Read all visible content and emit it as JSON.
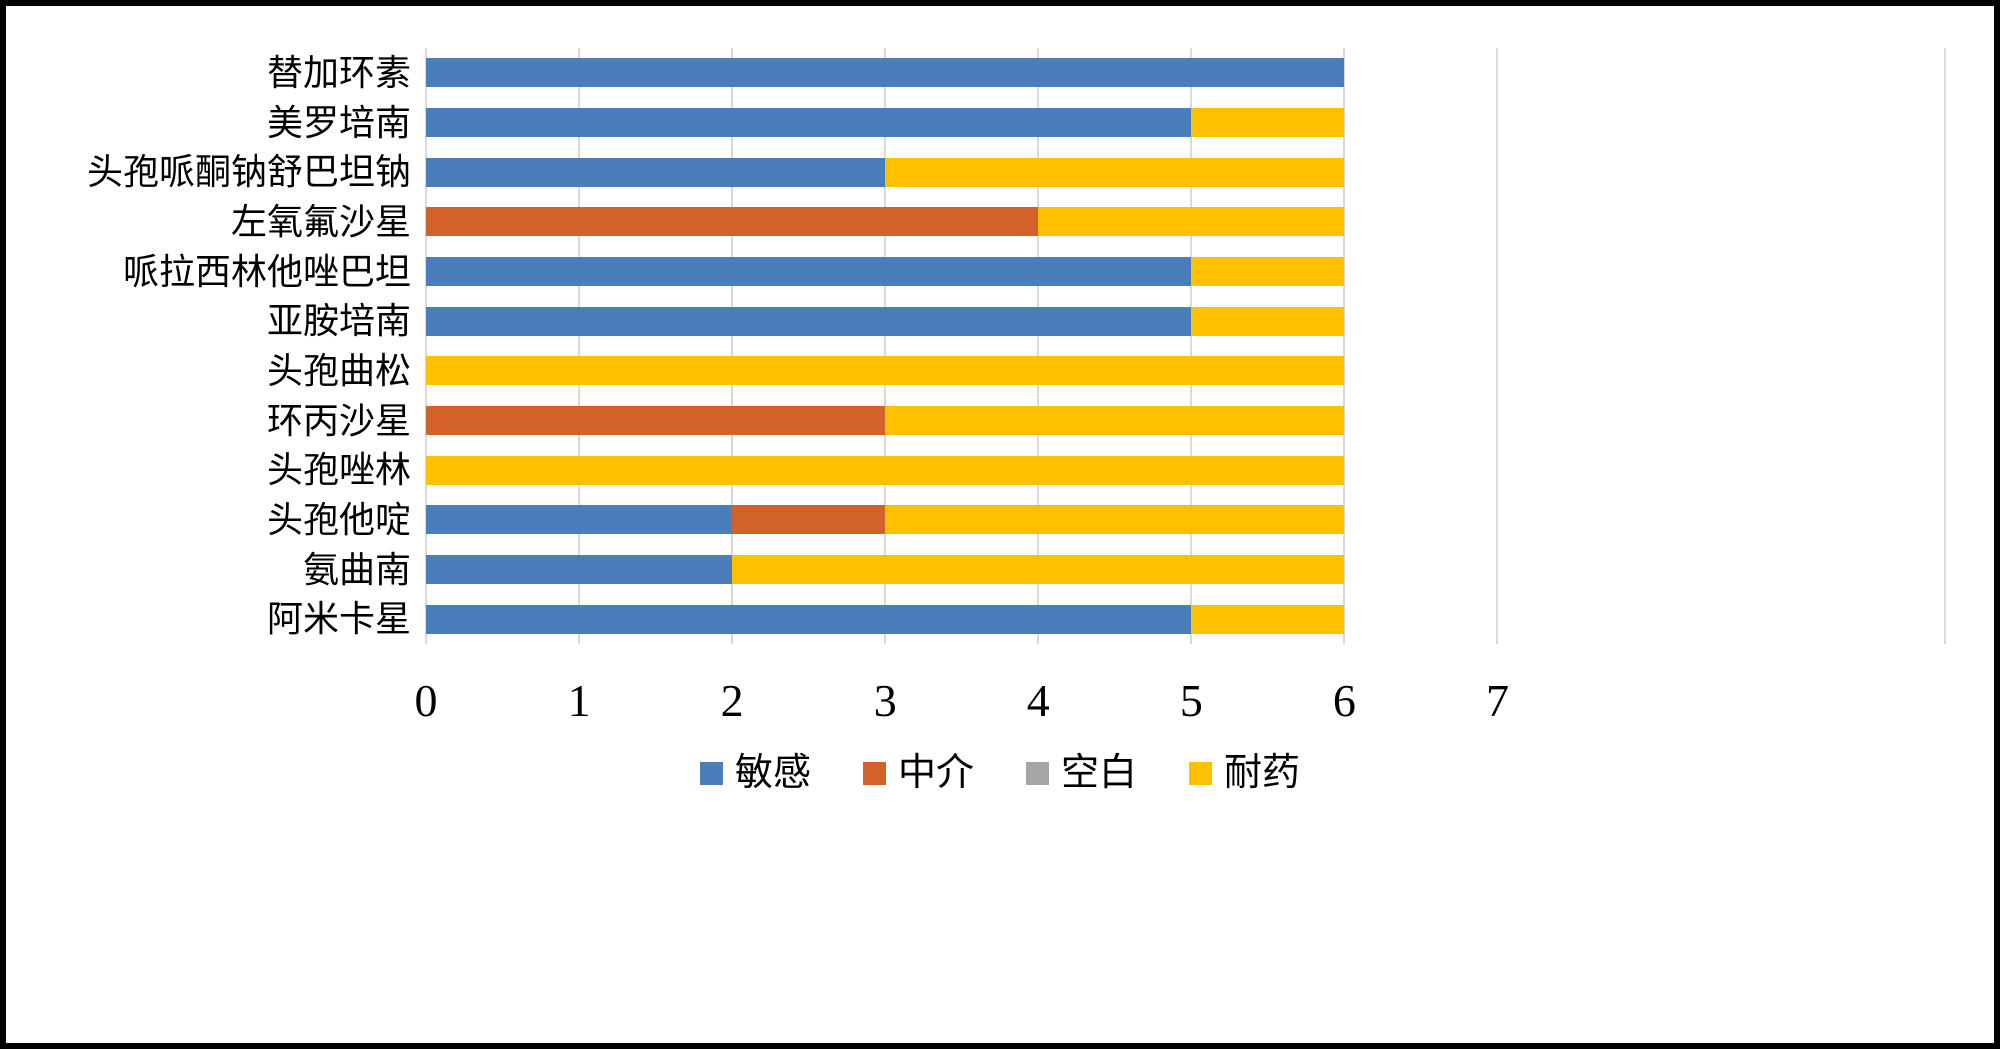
{
  "chart_data": {
    "type": "bar",
    "orientation": "horizontal",
    "stacked": true,
    "title": "",
    "categories": [
      "替加环素",
      "美罗培南",
      "头孢哌酮钠舒巴坦钠",
      "左氧氟沙星",
      "哌拉西林他唑巴坦",
      "亚胺培南",
      "头孢曲松",
      "环丙沙星",
      "头孢唑林",
      "头孢他啶",
      "氨曲南",
      "阿米卡星"
    ],
    "series": [
      {
        "name": "敏感",
        "color": "#4A7EBB",
        "values": [
          6,
          5,
          3,
          0,
          5,
          5,
          0,
          0,
          0,
          2,
          2,
          5
        ]
      },
      {
        "name": "中介",
        "color": "#D2622A",
        "values": [
          0,
          0,
          0,
          4,
          0,
          0,
          0,
          3,
          0,
          1,
          0,
          0
        ]
      },
      {
        "name": "空白",
        "color": "#A5A5A5",
        "values": [
          0,
          0,
          0,
          0,
          0,
          0,
          0,
          0,
          0,
          0,
          0,
          0
        ]
      },
      {
        "name": "耐药",
        "color": "#FFC000",
        "values": [
          0,
          1,
          3,
          2,
          1,
          1,
          6,
          3,
          6,
          3,
          4,
          1
        ]
      }
    ],
    "xlim": [
      0,
      7
    ],
    "xticks": [
      "0",
      "1",
      "2",
      "3",
      "4",
      "5",
      "6",
      "7"
    ],
    "grid": true,
    "gridline_color": "#D9D9D9",
    "legend_position": "bottom"
  }
}
